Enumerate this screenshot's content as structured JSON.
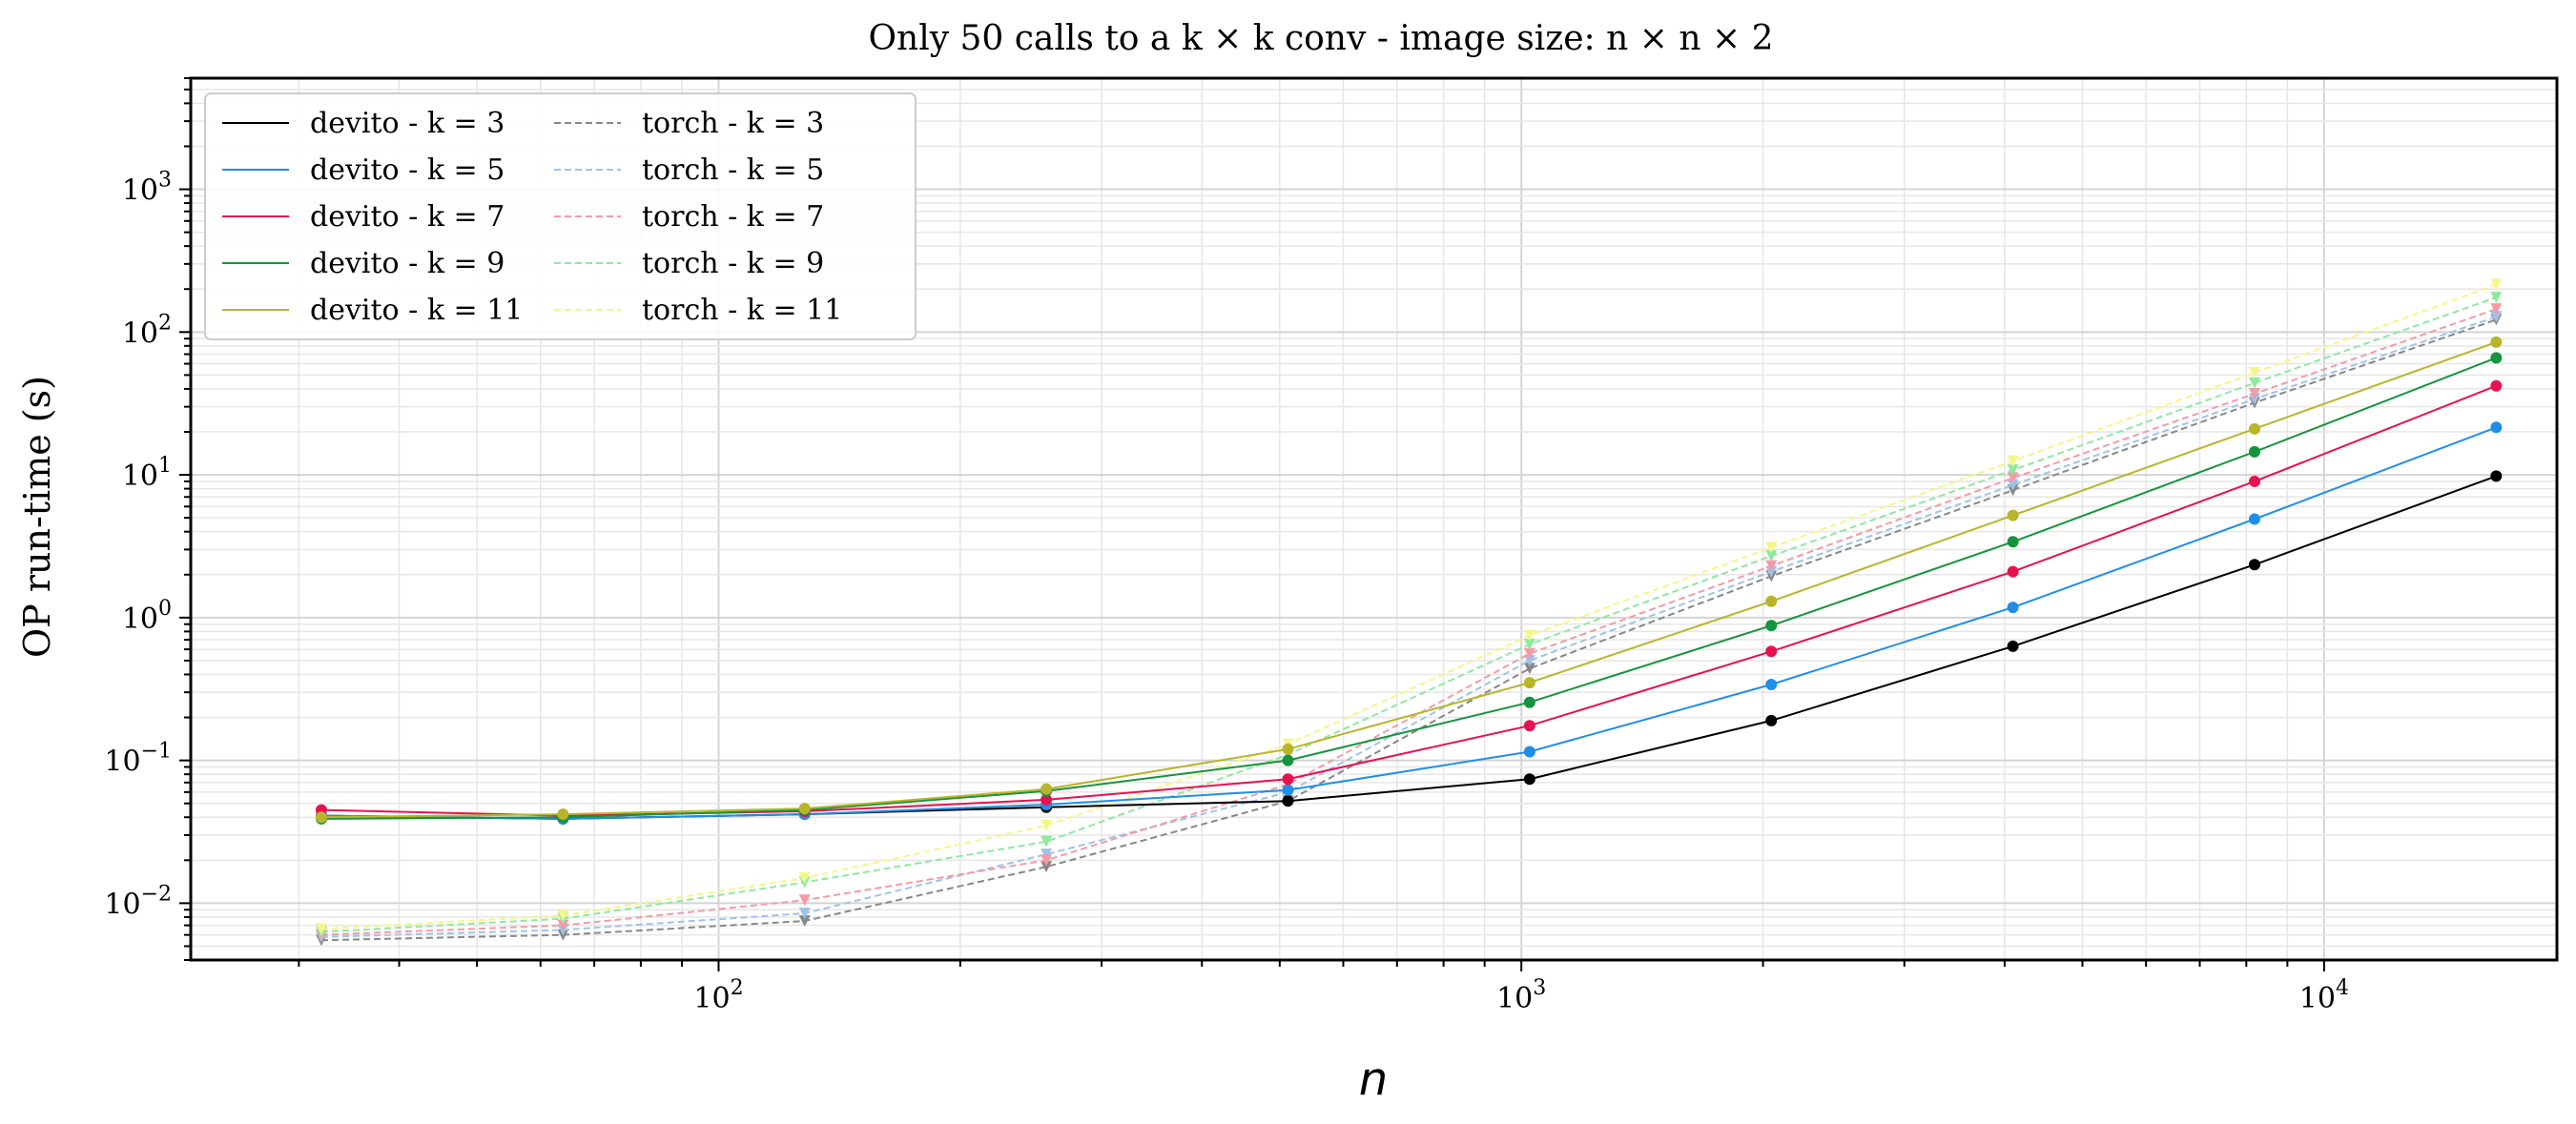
{
  "chart_data": {
    "type": "line",
    "title": "Only 50 calls to a k × k conv - image size: n × n × 2",
    "xlabel": "n",
    "ylabel": "OP run-time (s)",
    "xscale": "log",
    "yscale": "log",
    "xlim": [
      22,
      19500
    ],
    "ylim": [
      0.004,
      6000
    ],
    "grid": true,
    "legend_position": "top-left",
    "legend_columns": 2,
    "x_ticks": [
      {
        "value": 100,
        "base": "10",
        "exp": "2"
      },
      {
        "value": 1000,
        "base": "10",
        "exp": "3"
      },
      {
        "value": 10000,
        "base": "10",
        "exp": "4"
      }
    ],
    "y_ticks": [
      {
        "value": 0.01,
        "base": "10",
        "exp": "−2"
      },
      {
        "value": 0.1,
        "base": "10",
        "exp": "−1"
      },
      {
        "value": 1,
        "base": "10",
        "exp": "0"
      },
      {
        "value": 10,
        "base": "10",
        "exp": "1"
      },
      {
        "value": 100,
        "base": "10",
        "exp": "2"
      },
      {
        "value": 1000,
        "base": "10",
        "exp": "3"
      }
    ],
    "x": [
      32,
      64,
      128,
      256,
      512,
      1024,
      2048,
      4096,
      8192,
      16384
    ],
    "series": [
      {
        "name": "devito - k = 3",
        "color": "#000000",
        "dashed": false,
        "values": [
          0.041,
          0.039,
          0.042,
          0.047,
          0.052,
          0.074,
          0.19,
          0.63,
          2.35,
          9.8
        ]
      },
      {
        "name": "devito - k = 5",
        "color": "#1f8fe6",
        "dashed": false,
        "values": [
          0.041,
          0.039,
          0.042,
          0.049,
          0.062,
          0.115,
          0.34,
          1.18,
          4.9,
          21.5
        ]
      },
      {
        "name": "devito - k = 7",
        "color": "#e8114f",
        "dashed": false,
        "values": [
          0.045,
          0.041,
          0.044,
          0.053,
          0.074,
          0.175,
          0.58,
          2.1,
          9.0,
          42.0
        ]
      },
      {
        "name": "devito - k = 9",
        "color": "#15943d",
        "dashed": false,
        "values": [
          0.039,
          0.04,
          0.045,
          0.061,
          0.1,
          0.255,
          0.88,
          3.4,
          14.5,
          66.0
        ]
      },
      {
        "name": "devito - k = 11",
        "color": "#b8b52a",
        "dashed": false,
        "values": [
          0.04,
          0.042,
          0.046,
          0.063,
          0.12,
          0.35,
          1.3,
          5.2,
          21.0,
          85.0
        ]
      },
      {
        "name": "torch - k = 3",
        "color": "#888888",
        "dashed": true,
        "values": [
          0.0055,
          0.006,
          0.0075,
          0.018,
          0.052,
          0.44,
          1.95,
          7.8,
          32.0,
          122.0
        ]
      },
      {
        "name": "torch - k = 5",
        "color": "#9ec3ea",
        "dashed": true,
        "values": [
          0.0058,
          0.0065,
          0.0085,
          0.022,
          0.06,
          0.5,
          2.1,
          8.5,
          34.0,
          128.0
        ]
      },
      {
        "name": "torch - k = 7",
        "color": "#f59aa5",
        "dashed": true,
        "values": [
          0.006,
          0.007,
          0.0105,
          0.02,
          0.068,
          0.56,
          2.3,
          9.5,
          37.0,
          145.0
        ]
      },
      {
        "name": "torch - k = 9",
        "color": "#8fe8a0",
        "dashed": true,
        "values": [
          0.0063,
          0.0078,
          0.014,
          0.027,
          0.11,
          0.65,
          2.7,
          10.8,
          44.0,
          175.0
        ]
      },
      {
        "name": "torch - k = 11",
        "color": "#f6f58a",
        "dashed": true,
        "values": [
          0.0066,
          0.0082,
          0.015,
          0.035,
          0.13,
          0.75,
          3.1,
          12.5,
          52.0,
          215.0
        ]
      }
    ]
  }
}
